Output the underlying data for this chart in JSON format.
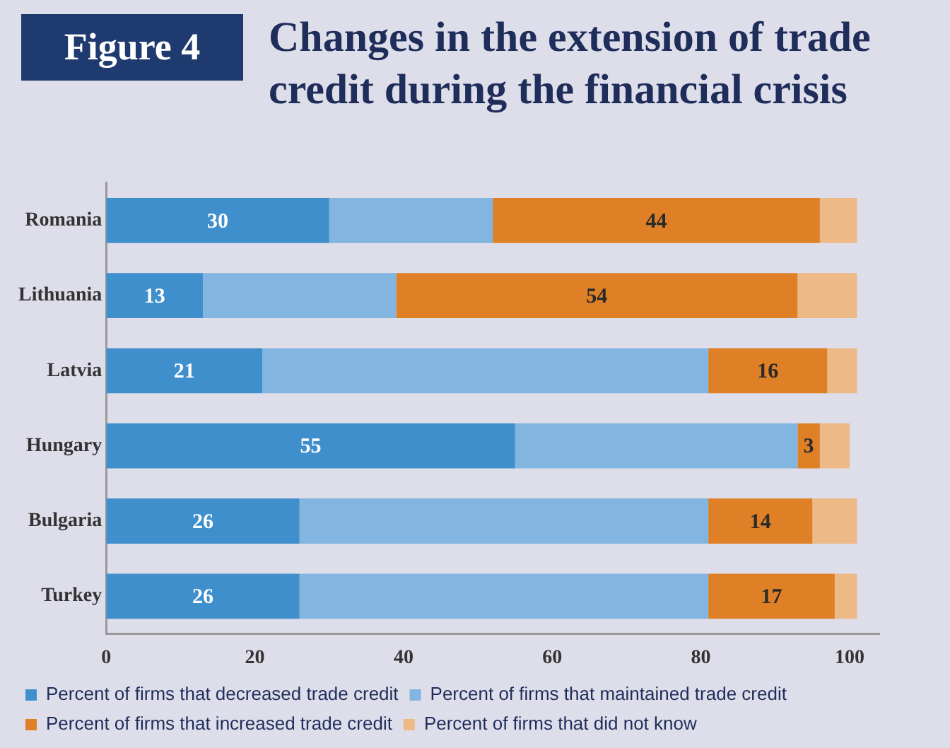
{
  "chart_data": {
    "type": "bar",
    "orientation": "horizontal",
    "stacked": true,
    "title": "Changes in the extension of trade credit during the financial crisis",
    "annotations": [
      "Figure 4"
    ],
    "categories": [
      "Romania",
      "Lithuania",
      "Latvia",
      "Hungary",
      "Bulgaria",
      "Turkey"
    ],
    "series": [
      {
        "name": "Percent of firms that decreased trade credit",
        "color": "#3f8fcd",
        "values": [
          30,
          13,
          21,
          55,
          26,
          26
        ],
        "value_labels": [
          "30",
          "13",
          "21",
          "55",
          "26",
          "26"
        ]
      },
      {
        "name": "Percent of firms that maintained trade credit",
        "color": "#82b5df",
        "values": [
          22,
          26,
          60,
          38,
          55,
          55
        ]
      },
      {
        "name": "Percent of firms that increased trade credit",
        "color": "#df8027",
        "values": [
          44,
          54,
          16,
          3,
          14,
          17
        ],
        "value_labels": [
          "44",
          "54",
          "16",
          "3",
          "14",
          "17"
        ]
      },
      {
        "name": "Percent of firms that did not know",
        "color": "#edb987",
        "values": [
          5,
          8,
          4,
          4,
          6,
          3
        ]
      }
    ],
    "xlim": [
      0,
      104
    ],
    "xticks": [
      0,
      20,
      40,
      60,
      80,
      100
    ],
    "grid": false,
    "legend": "bottom"
  }
}
